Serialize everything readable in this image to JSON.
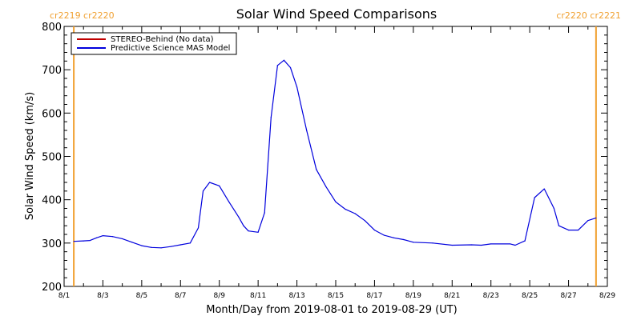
{
  "chart_data": {
    "type": "line",
    "title": "Solar Wind Speed Comparisons",
    "xlabel": "Month/Day from 2019-08-01 to 2019-08-29 (UT)",
    "ylabel": "Solar Wind Speed (km/s)",
    "xlim": [
      "2019-08-01",
      "2019-08-29"
    ],
    "ylim": [
      200,
      800
    ],
    "x_ticks": [
      "8/1",
      "8/3",
      "8/5",
      "8/7",
      "8/9",
      "8/11",
      "8/13",
      "8/15",
      "8/17",
      "8/19",
      "8/21",
      "8/23",
      "8/25",
      "8/27",
      "8/29"
    ],
    "y_ticks": [
      200,
      300,
      400,
      500,
      600,
      700,
      800
    ],
    "legend": {
      "position": "top-left",
      "entries": [
        "STEREO-Behind (No data)",
        "Predictive Science MAS Model"
      ]
    },
    "colors": {
      "stereo_line": "#c00000",
      "model_line": "#0000dd",
      "cr_marker": "#f0a030"
    },
    "cr_markers": [
      {
        "date": "2019-08-01T12:00",
        "label": "cr2219 cr2220"
      },
      {
        "date": "2019-08-28T10:00",
        "label": "cr2220 cr2221"
      }
    ],
    "series": [
      {
        "name": "STEREO-Behind (No data)",
        "x": [],
        "values": []
      },
      {
        "name": "Predictive Science MAS Model",
        "x": [
          "2019-08-01T12:00",
          "2019-08-02T00:00",
          "2019-08-02T08:00",
          "2019-08-02T16:00",
          "2019-08-03T00:00",
          "2019-08-03T12:00",
          "2019-08-04T00:00",
          "2019-08-04T12:00",
          "2019-08-05T00:00",
          "2019-08-05T12:00",
          "2019-08-06T00:00",
          "2019-08-06T12:00",
          "2019-08-07T00:00",
          "2019-08-07T12:00",
          "2019-08-07T22:00",
          "2019-08-08T04:00",
          "2019-08-08T12:00",
          "2019-08-09T00:00",
          "2019-08-09T12:00",
          "2019-08-10T00:00",
          "2019-08-10T06:00",
          "2019-08-10T12:00",
          "2019-08-11T00:00",
          "2019-08-11T08:00",
          "2019-08-11T16:00",
          "2019-08-12T00:00",
          "2019-08-12T08:00",
          "2019-08-12T16:00",
          "2019-08-13T00:00",
          "2019-08-13T12:00",
          "2019-08-14T00:00",
          "2019-08-14T12:00",
          "2019-08-15T00:00",
          "2019-08-15T12:00",
          "2019-08-16T00:00",
          "2019-08-16T12:00",
          "2019-08-17T00:00",
          "2019-08-17T12:00",
          "2019-08-18T00:00",
          "2019-08-18T12:00",
          "2019-08-19T00:00",
          "2019-08-20T00:00",
          "2019-08-21T00:00",
          "2019-08-22T00:00",
          "2019-08-22T12:00",
          "2019-08-23T00:00",
          "2019-08-24T00:00",
          "2019-08-24T06:00",
          "2019-08-24T18:00",
          "2019-08-25T06:00",
          "2019-08-25T18:00",
          "2019-08-26T06:00",
          "2019-08-26T12:00",
          "2019-08-27T00:00",
          "2019-08-27T12:00",
          "2019-08-28T00:00",
          "2019-08-28T10:00"
        ],
        "values": [
          304,
          305,
          306,
          312,
          317,
          315,
          310,
          302,
          294,
          290,
          289,
          292,
          296,
          300,
          335,
          420,
          440,
          432,
          395,
          360,
          340,
          328,
          325,
          370,
          590,
          710,
          722,
          705,
          660,
          560,
          470,
          430,
          395,
          378,
          368,
          352,
          330,
          318,
          312,
          308,
          302,
          300,
          295,
          296,
          295,
          298,
          298,
          295,
          305,
          405,
          425,
          380,
          340,
          330,
          330,
          352,
          358
        ]
      }
    ]
  }
}
